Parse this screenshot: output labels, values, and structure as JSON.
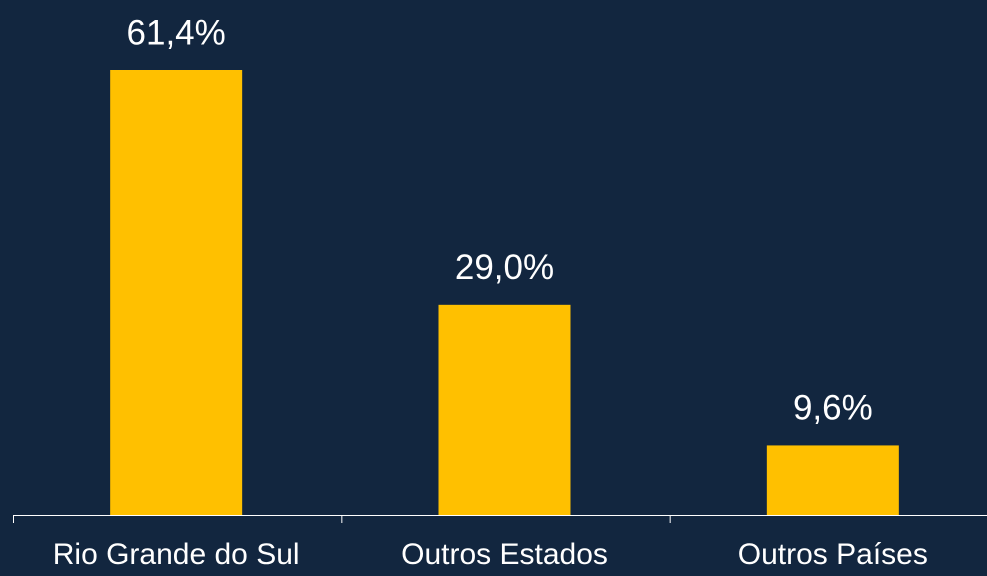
{
  "chart_data": {
    "type": "bar",
    "categories": [
      "Rio Grande do Sul",
      "Outros Estados",
      "Outros Países"
    ],
    "values": [
      61.4,
      29.0,
      9.6
    ],
    "value_labels": [
      "61,4%",
      "29,0%",
      "9,6%"
    ],
    "color": "#ffc000"
  }
}
